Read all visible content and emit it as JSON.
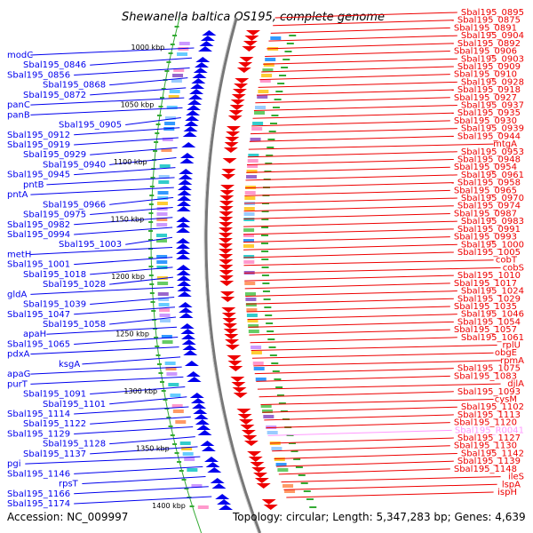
{
  "title": "Shewanella baltica OS195, complete genome",
  "footer": {
    "accession": "Accession: NC_009997",
    "stats": "Topology: circular; Length: 5,347,283 bp; Genes: 4,639"
  },
  "kbp_ticks": [
    "1000 kbp",
    "1050 kbp",
    "1100 kbp",
    "1150 kbp",
    "1200 kbp",
    "1250 kbp",
    "1300 kbp",
    "1350 kbp",
    "1400 kbp"
  ],
  "colors": {
    "forward_strand": "#0000ee",
    "reverse_strand": "#ee0000",
    "rna": "#ff99ff",
    "gc_track": "#999999",
    "tick": "#33aa33"
  },
  "left_labels": [
    "modC",
    "Sbal195_0846",
    "Sbal195_0856",
    "Sbal195_0868",
    "Sbal195_0872",
    "panC",
    "panB",
    "Sbal195_0905",
    "Sbal195_0912",
    "Sbal195_0919",
    "Sbal195_0929",
    "Sbal195_0940",
    "Sbal195_0945",
    "pntB",
    "pntA",
    "Sbal195_0966",
    "Sbal195_0975",
    "Sbal195_0982",
    "Sbal195_0994",
    "Sbal195_1003",
    "metH",
    "Sbal195_1001",
    "Sbal195_1018",
    "Sbal195_1028",
    "gldA",
    "Sbal195_1039",
    "Sbal195_1047",
    "Sbal195_1058",
    "apaH",
    "Sbal195_1065",
    "pdxA",
    "ksgA",
    "apaG",
    "purT",
    "Sbal195_1091",
    "Sbal195_1101",
    "Sbal195_1114",
    "Sbal195_1122",
    "Sbal195_1129",
    "Sbal195_1128",
    "Sbal195_1137",
    "pgi",
    "Sbal195_1146",
    "rpsT",
    "Sbal195_1166",
    "Sbal195_1174"
  ],
  "right_labels": [
    "Sbal195_0895",
    "Sbal195_0875",
    "Sbal195_0891",
    "Sbal195_0904",
    "Sbal195_0892",
    "Sbal195_0906",
    "Sbal195_0903",
    "Sbal195_0909",
    "Sbal195_0910",
    "Sbal195_0928",
    "Sbal195_0918",
    "Sbal195_0927",
    "Sbal195_0937",
    "Sbal195_0935",
    "Sbal195_0930",
    "Sbal195_0939",
    "Sbal195_0944",
    "mtgA",
    "Sbal195_0953",
    "Sbal195_0948",
    "Sbal195_0954",
    "Sbal195_0961",
    "Sbal195_0958",
    "Sbal195_0965",
    "Sbal195_0970",
    "Sbal195_0974",
    "Sbal195_0987",
    "Sbal195_0983",
    "Sbal195_0991",
    "Sbal195_0993",
    "Sbal195_1000",
    "Sbal195_1005",
    "cobT",
    "cobS",
    "Sbal195_1010",
    "Sbal195_1017",
    "Sbal195_1024",
    "Sbal195_1029",
    "Sbal195_1035",
    "Sbal195_1046",
    "Sbal195_1054",
    "Sbal195_1057",
    "Sbal195_1061",
    "rplU",
    "obgE",
    "rpmA",
    "Sbal195_1075",
    "Sbal195_1083",
    "djlA",
    "Sbal195_1093",
    "cysM",
    "Sbal195_1102",
    "Sbal195_1113",
    "Sbal195_1120",
    "Sbal195_R0041",
    "Sbal195_1127",
    "Sbal195_1130",
    "Sbal195_1142",
    "Sbal195_1139",
    "Sbal195_1148",
    "ileS",
    "lspA",
    "ispH"
  ]
}
